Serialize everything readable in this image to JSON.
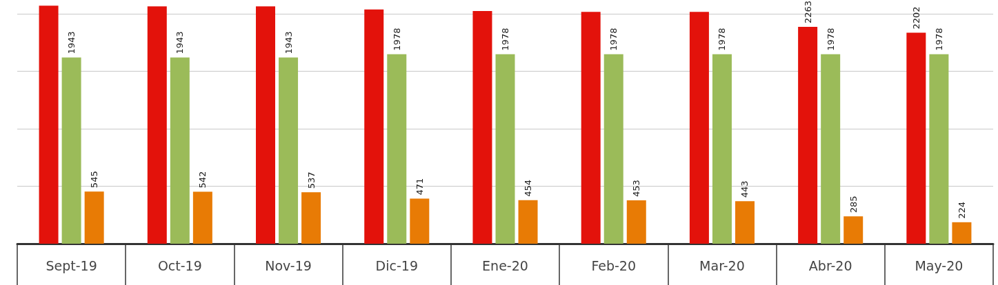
{
  "chart_data": {
    "type": "bar",
    "categories": [
      "Sept-19",
      "Oct-19",
      "Nov-19",
      "Dic-19",
      "Ene-20",
      "Feb-20",
      "Mar-20",
      "Abr-20",
      "May-20"
    ],
    "series": [
      {
        "color": "#e3120b",
        "values": [
          2484,
          2476,
          2476,
          2444,
          2428,
          2420,
          2420,
          2263,
          2202
        ],
        "value_labels": [
          null,
          null,
          null,
          null,
          null,
          null,
          null,
          "2263",
          "2202"
        ]
      },
      {
        "color": "#9bbb59",
        "values": [
          1943,
          1943,
          1943,
          1978,
          1978,
          1978,
          1978,
          1978,
          1978
        ],
        "value_labels": [
          "1943",
          "1943",
          "1943",
          "1978",
          "1978",
          "1978",
          "1978",
          "1978",
          "1978"
        ]
      },
      {
        "color": "#e87b05",
        "values": [
          545,
          542,
          537,
          471,
          454,
          453,
          443,
          285,
          224
        ],
        "value_labels": [
          "545",
          "542",
          "537",
          "471",
          "454",
          "453",
          "443",
          "285",
          "224"
        ]
      }
    ],
    "yticks": [
      {
        "value": 0,
        "label": null
      },
      {
        "value": 600,
        "label": null
      },
      {
        "value": 1200,
        "label": null
      },
      {
        "value": 1800,
        "label": null
      },
      {
        "value": 2400,
        "label": null
      }
    ],
    "grid": "y",
    "tick_labels": "x"
  }
}
